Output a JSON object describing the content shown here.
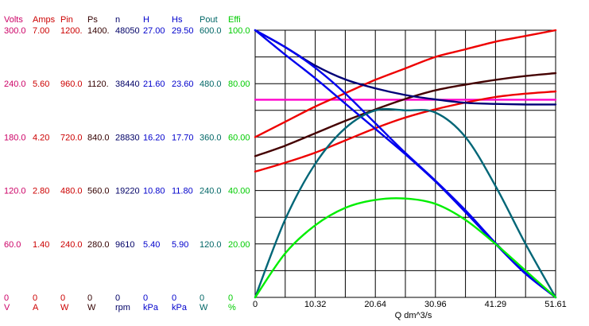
{
  "chart_data": {
    "type": "line",
    "xlabel": "Q  dm^3/s",
    "x_ticks": [
      "0",
      "10.32",
      "20.64",
      "30.96",
      "41.29",
      "51.61"
    ],
    "x_range": [
      0,
      51.61
    ],
    "grid": true,
    "axis_columns": [
      {
        "key": "volts",
        "header": "Volts",
        "unit": "V",
        "color": "#cc0066",
        "ticks": [
          "300.0",
          "240.0",
          "180.0",
          "120.0",
          "60.0",
          "0"
        ]
      },
      {
        "key": "amps",
        "header": "Amps",
        "unit": "A",
        "color": "#cc0000",
        "ticks": [
          "7.00",
          "5.60",
          "4.20",
          "2.80",
          "1.40",
          "0"
        ]
      },
      {
        "key": "pin",
        "header": "Pin",
        "unit": "W",
        "color": "#cc0000",
        "ticks": [
          "1200.",
          "960.0",
          "720.0",
          "480.0",
          "240.0",
          "0"
        ]
      },
      {
        "key": "ps",
        "header": "Ps",
        "unit": "W",
        "color": "#330000",
        "ticks": [
          "1400.",
          "1120.",
          "840.0",
          "560.0",
          "280.0",
          "0"
        ]
      },
      {
        "key": "n",
        "header": "n",
        "unit": "rpm",
        "color": "#000066",
        "ticks": [
          "48050",
          "38440",
          "28830",
          "19220",
          "9610",
          "0"
        ]
      },
      {
        "key": "h",
        "header": "H",
        "unit": "kPa",
        "color": "#0000cc",
        "ticks": [
          "27.00",
          "21.60",
          "16.20",
          "10.80",
          "5.40",
          "0"
        ]
      },
      {
        "key": "hs",
        "header": "Hs",
        "unit": "kPa",
        "color": "#0000cc",
        "ticks": [
          "29.50",
          "23.60",
          "17.70",
          "11.80",
          "5.90",
          "0"
        ]
      },
      {
        "key": "pout",
        "header": "Pout",
        "unit": "W",
        "color": "#006666",
        "ticks": [
          "600.0",
          "480.0",
          "360.0",
          "240.0",
          "120.0",
          "0"
        ]
      },
      {
        "key": "effi",
        "header": "Effi",
        "unit": "%",
        "color": "#00cc00",
        "ticks": [
          "100.0",
          "80.00",
          "60.00",
          "40.00",
          "20.00",
          "0"
        ]
      }
    ],
    "series": [
      {
        "axis": "volts",
        "color": "#ff00cc",
        "x": [
          0,
          51.61
        ],
        "y": [
          222,
          222
        ]
      },
      {
        "axis": "amps",
        "color": "#ee0000",
        "x": [
          0,
          5.16,
          10.32,
          15.48,
          20.64,
          25.8,
          30.96,
          36.13,
          41.29,
          46.45,
          51.61
        ],
        "y": [
          4.2,
          4.6,
          5.0,
          5.35,
          5.7,
          6.0,
          6.3,
          6.5,
          6.7,
          6.85,
          7.0
        ]
      },
      {
        "axis": "pin",
        "color": "#ee0000",
        "x": [
          0,
          5.16,
          10.32,
          15.48,
          20.64,
          25.8,
          30.96,
          36.13,
          41.29,
          46.45,
          51.61
        ],
        "y": [
          565,
          605,
          650,
          705,
          760,
          808,
          845,
          875,
          900,
          915,
          925
        ]
      },
      {
        "axis": "ps",
        "color": "#440000",
        "x": [
          0,
          5.16,
          10.32,
          15.48,
          20.64,
          25.8,
          30.96,
          36.13,
          41.29,
          46.45,
          51.61
        ],
        "y": [
          740,
          795,
          860,
          925,
          985,
          1040,
          1085,
          1115,
          1140,
          1160,
          1175
        ]
      },
      {
        "axis": "n",
        "color": "#000077",
        "x": [
          0,
          5.16,
          10.32,
          15.48,
          20.64,
          25.8,
          30.96,
          36.13,
          41.29,
          46.45,
          51.61
        ],
        "y": [
          48050,
          45000,
          41700,
          39200,
          37600,
          36400,
          35600,
          35000,
          34800,
          34700,
          34700
        ]
      },
      {
        "axis": "h",
        "color": "#0000ee",
        "x": [
          0,
          5.16,
          10.32,
          15.48,
          20.64,
          25.8,
          30.96,
          36.13,
          41.29,
          46.45,
          51.61
        ],
        "y": [
          27.0,
          25.3,
          23.2,
          20.6,
          17.6,
          14.6,
          11.8,
          8.8,
          5.5,
          2.5,
          0
        ]
      },
      {
        "axis": "hs",
        "color": "#0000ee",
        "x": [
          0,
          5.16,
          10.32,
          15.48,
          20.64,
          25.8,
          30.96,
          36.13,
          41.29,
          46.45,
          51.61
        ],
        "y": [
          29.5,
          26.8,
          24.2,
          21.4,
          18.6,
          15.8,
          12.8,
          9.4,
          5.9,
          2.6,
          0
        ]
      },
      {
        "axis": "pout",
        "color": "#006677",
        "x": [
          0,
          5.16,
          10.32,
          15.48,
          20.64,
          25.8,
          30.96,
          36.13,
          41.29,
          46.45,
          51.61
        ],
        "y": [
          0,
          175,
          300,
          380,
          420,
          420,
          415,
          360,
          250,
          120,
          0
        ]
      },
      {
        "axis": "effi",
        "color": "#00ee00",
        "x": [
          0,
          5.16,
          10.32,
          15.48,
          20.64,
          25.8,
          30.96,
          36.13,
          41.29,
          46.45,
          51.61
        ],
        "y": [
          0,
          16.5,
          27.0,
          33.5,
          36.5,
          37.0,
          35.0,
          29.0,
          20.0,
          10.0,
          0
        ]
      }
    ]
  }
}
